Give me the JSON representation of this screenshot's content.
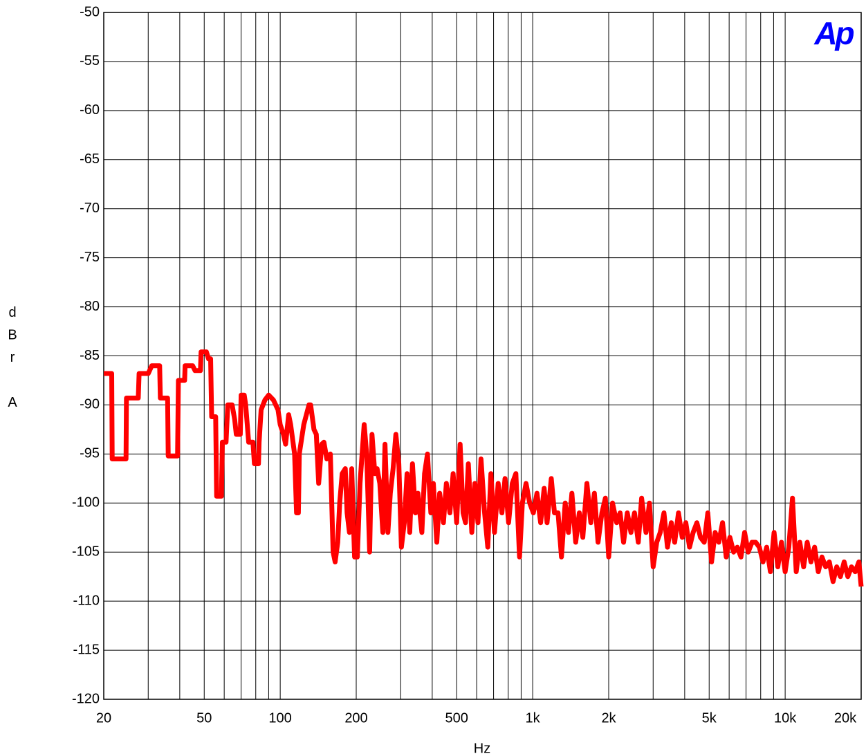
{
  "chart_data": {
    "type": "line",
    "xlabel": "Hz",
    "ylabel": "dBr A",
    "logo": "Ap",
    "xscale": "log",
    "grid": true,
    "xlim": [
      20,
      20000
    ],
    "ylim": [
      -120,
      -50
    ],
    "xticks": [
      20,
      50,
      100,
      200,
      500,
      {
        "value": 1000,
        "label": "1k"
      },
      {
        "value": 2000,
        "label": "2k"
      },
      {
        "value": 5000,
        "label": "5k"
      },
      {
        "value": 10000,
        "label": "10k"
      },
      {
        "value": 20000,
        "label": "20k"
      }
    ],
    "xminor": [
      30,
      40,
      60,
      70,
      80,
      90,
      300,
      400,
      600,
      700,
      800,
      900,
      3000,
      4000,
      6000,
      7000,
      8000,
      9000
    ],
    "yticks": [
      -120,
      -115,
      -110,
      -105,
      -100,
      -95,
      -90,
      -85,
      -80,
      -75,
      -70,
      -65,
      -60,
      -55,
      -50
    ],
    "x": [
      20,
      21.5,
      21.6,
      24.5,
      24.6,
      27.4,
      27.6,
      30,
      31,
      33.3,
      33.5,
      35.8,
      36,
      39.2,
      39.5,
      41.8,
      42,
      45,
      46,
      48.3,
      48.6,
      51,
      52,
      53,
      53.5,
      55.5,
      56,
      58.5,
      59,
      61,
      62,
      64.5,
      66,
      67,
      69.5,
      70,
      72,
      73,
      75,
      78,
      79,
      82,
      82.5,
      84,
      87,
      90,
      94,
      98,
      100,
      103,
      105,
      108,
      110,
      114,
      116,
      118,
      119,
      121,
      124,
      130,
      132,
      136,
      139,
      142,
      146,
      149,
      153,
      158,
      162,
      165,
      169,
      172,
      176,
      181,
      184,
      188,
      192,
      197,
      202,
      207,
      215,
      220,
      226,
      231,
      237,
      242,
      248,
      255,
      260,
      267,
      273,
      280,
      287,
      295,
      302,
      310,
      318,
      326,
      334,
      343,
      351,
      364,
      373,
      383,
      395,
      404,
      417,
      428,
      443,
      455,
      470,
      484,
      500,
      516,
      530,
      542,
      556,
      574,
      590,
      607,
      624,
      645,
      664,
      683,
      706,
      730,
      755,
      777,
      803,
      830,
      858,
      887,
      910,
      941,
      973,
      1006,
      1040,
      1075,
      1110,
      1140,
      1185,
      1220,
      1260,
      1300,
      1345,
      1385,
      1430,
      1480,
      1530,
      1580,
      1640,
      1700,
      1755,
      1815,
      1880,
      1940,
      2000,
      2070,
      2150,
      2220,
      2290,
      2370,
      2450,
      2530,
      2620,
      2700,
      2810,
      2900,
      3000,
      3100,
      3200,
      3310,
      3420,
      3540,
      3650,
      3780,
      3910,
      4040,
      4180,
      4320,
      4470,
      4620,
      4780,
      4940,
      5110,
      5280,
      5460,
      5650,
      5840,
      6040,
      6250,
      6460,
      6680,
      6910,
      7140,
      7390,
      7640,
      7900,
      8170,
      8450,
      8740,
      9040,
      9350,
      9670,
      10000,
      10340,
      10690,
      11060,
      11430,
      11830,
      12230,
      12650,
      13080,
      13530,
      13990,
      14470,
      14960,
      15480,
      16010,
      16550,
      17120,
      17710,
      18310,
      18940,
      19590,
      20000
    ],
    "series": [
      {
        "color": "#ff0000",
        "values": [
          -86.8,
          -86.8,
          -95.5,
          -95.5,
          -89.3,
          -89.3,
          -86.8,
          -86.8,
          -86,
          -86,
          -89.3,
          -89.3,
          -95.2,
          -95.2,
          -87.5,
          -87.5,
          -86,
          -86,
          -86.5,
          -86.5,
          -84.6,
          -84.6,
          -85.3,
          -85.3,
          -91.2,
          -91.2,
          -99.3,
          -99.3,
          -93.8,
          -93.8,
          -90,
          -90,
          -91.5,
          -93,
          -93,
          -89,
          -89,
          -90,
          -93.8,
          -93.8,
          -96,
          -96,
          -93.8,
          -90.5,
          -89.5,
          -89,
          -89.5,
          -90.5,
          -92,
          -93,
          -94,
          -91,
          -92,
          -95,
          -101,
          -101,
          -95,
          -93.8,
          -92,
          -90,
          -90,
          -92.5,
          -93,
          -98,
          -94,
          -93.8,
          -95.5,
          -95,
          -105,
          -106,
          -104,
          -100,
          -97,
          -96.5,
          -101,
          -103,
          -96.5,
          -105.5,
          -105.5,
          -98,
          -92,
          -95,
          -105,
          -93,
          -97,
          -96.5,
          -98,
          -103,
          -94,
          -103,
          -99,
          -96.5,
          -93,
          -96,
          -104.5,
          -102,
          -97,
          -103,
          -96,
          -101,
          -99,
          -103,
          -97,
          -95,
          -101,
          -98,
          -104,
          -99,
          -102,
          -98,
          -101,
          -97,
          -102,
          -94,
          -101,
          -102,
          -96,
          -103,
          -98,
          -102,
          -95.5,
          -101,
          -104.5,
          -97,
          -103,
          -98,
          -101,
          -97.5,
          -102,
          -98,
          -97,
          -105.5,
          -100,
          -98,
          -100,
          -101,
          -99,
          -102,
          -98.5,
          -102,
          -97.5,
          -101,
          -101,
          -105.5,
          -100,
          -103,
          -99,
          -104,
          -101,
          -103.5,
          -98,
          -102,
          -99,
          -104,
          -101,
          -99.5,
          -105.5,
          -100,
          -102,
          -101,
          -104,
          -101,
          -103,
          -101,
          -104,
          -99.5,
          -103,
          -100,
          -106.5,
          -104,
          -103,
          -101,
          -104.5,
          -102,
          -104,
          -101,
          -103.5,
          -102,
          -104.5,
          -103,
          -102,
          -103.5,
          -104,
          -101,
          -106,
          -103,
          -104,
          -102,
          -105.5,
          -103.5,
          -105,
          -104.5,
          -105.5,
          -103,
          -105,
          -104,
          -104,
          -104.5,
          -106,
          -104.5,
          -107,
          -103,
          -106.5,
          -104,
          -107,
          -104.5,
          -99.5,
          -107,
          -104,
          -106.5,
          -104,
          -106,
          -104.5,
          -107,
          -105.5,
          -106.5,
          -106,
          -108,
          -106.5,
          -107.5,
          -106,
          -107.5,
          -106.5,
          -107,
          -106,
          -108.5
        ]
      }
    ]
  }
}
